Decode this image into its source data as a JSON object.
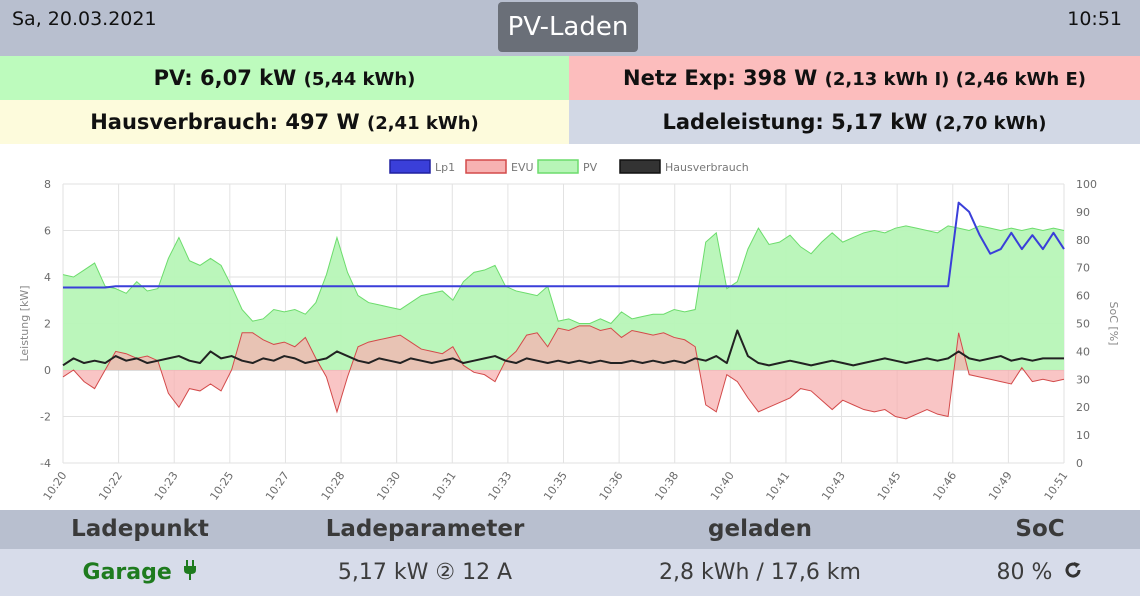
{
  "header": {
    "date": "Sa, 20.03.2021",
    "title": "PV-Laden",
    "time": "10:51"
  },
  "summary": {
    "pv_main": "PV: 6,07 kW",
    "pv_sub": "(5,44 kWh)",
    "netz_main": "Netz Exp: 398 W",
    "netz_sub": "(2,13 kWh I) (2,46 kWh E)",
    "haus_main": "Hausverbrauch: 497 W",
    "haus_sub": "(2,41 kWh)",
    "lade_main": "Ladeleistung: 5,17 kW",
    "lade_sub": "(2,70 kWh)"
  },
  "colors": {
    "header_bg": "#b8bfcf",
    "pv_bg": "#bdfbbd",
    "netz_bg": "#fcbdbd",
    "haus_bg": "#fdfbdc",
    "lade_bg": "#d2d8e5",
    "lp1": "#3a3fd9",
    "evu_fill": "#f7b2b2",
    "evu_line": "#d34a4a",
    "pv_fill": "#b7f5b7",
    "pv_line": "#6cdc6c",
    "haus_line": "#222222"
  },
  "chart_data": {
    "type": "line",
    "xlabel": "",
    "ylabel": "Leistung [kW]",
    "y2label": "SoC [%]",
    "ylim": [
      -4,
      8
    ],
    "y2lim": [
      0,
      100
    ],
    "y_ticks": [
      "-4",
      "-2",
      "0",
      "2",
      "4",
      "6",
      "8"
    ],
    "y2_ticks": [
      "0",
      "10",
      "20",
      "30",
      "40",
      "50",
      "60",
      "70",
      "80",
      "90",
      "100"
    ],
    "x_tick_labels": [
      "10:20",
      "10:22",
      "10:23",
      "10:25",
      "10:27",
      "10:28",
      "10:30",
      "10:31",
      "10:33",
      "10:35",
      "10:36",
      "10:38",
      "10:40",
      "10:41",
      "10:43",
      "10:45",
      "10:46",
      "10:49",
      "10:51"
    ],
    "legend": [
      "Lp1",
      "EVU",
      "PV",
      "Hausverbrauch"
    ],
    "legend_position": "top",
    "grid": true,
    "series": [
      {
        "name": "PV",
        "kind": "area",
        "values": [
          4.1,
          4.0,
          4.3,
          4.6,
          3.6,
          3.5,
          3.3,
          3.8,
          3.4,
          3.5,
          4.8,
          5.7,
          4.7,
          4.5,
          4.8,
          4.5,
          3.6,
          2.6,
          2.1,
          2.2,
          2.6,
          2.5,
          2.6,
          2.4,
          2.9,
          4.1,
          5.7,
          4.2,
          3.2,
          2.9,
          2.8,
          2.7,
          2.6,
          2.9,
          3.2,
          3.3,
          3.4,
          3.0,
          3.8,
          4.2,
          4.3,
          4.5,
          3.6,
          3.4,
          3.3,
          3.2,
          3.6,
          2.1,
          2.2,
          2.0,
          2.0,
          2.2,
          2.0,
          2.5,
          2.2,
          2.3,
          2.4,
          2.4,
          2.6,
          2.5,
          2.6,
          5.5,
          5.9,
          3.5,
          3.8,
          5.2,
          6.1,
          5.4,
          5.5,
          5.8,
          5.3,
          5.0,
          5.5,
          5.9,
          5.5,
          5.7,
          5.9,
          6.0,
          5.9,
          6.1,
          6.2,
          6.1,
          6.0,
          5.9,
          6.2,
          6.1,
          6.0,
          6.2,
          6.1,
          6.0,
          6.1,
          6.0,
          6.1,
          6.0,
          6.1,
          6.0
        ]
      },
      {
        "name": "EVU",
        "kind": "area",
        "values": [
          -0.3,
          0.0,
          -0.5,
          -0.8,
          0.0,
          0.8,
          0.7,
          0.5,
          0.6,
          0.4,
          -1.0,
          -1.6,
          -0.8,
          -0.9,
          -0.6,
          -0.9,
          0.0,
          1.6,
          1.6,
          1.3,
          1.1,
          1.2,
          1.0,
          1.4,
          0.5,
          -0.3,
          -1.8,
          -0.3,
          1.0,
          1.2,
          1.3,
          1.4,
          1.5,
          1.2,
          0.9,
          0.8,
          0.7,
          1.0,
          0.2,
          -0.1,
          -0.2,
          -0.5,
          0.4,
          0.8,
          1.5,
          1.6,
          1.0,
          1.8,
          1.7,
          1.9,
          1.9,
          1.7,
          1.8,
          1.4,
          1.7,
          1.6,
          1.5,
          1.6,
          1.4,
          1.3,
          1.0,
          -1.5,
          -1.8,
          -0.2,
          -0.5,
          -1.2,
          -1.8,
          -1.6,
          -1.4,
          -1.2,
          -0.8,
          -0.9,
          -1.3,
          -1.7,
          -1.3,
          -1.5,
          -1.7,
          -1.8,
          -1.7,
          -2.0,
          -2.1,
          -1.9,
          -1.7,
          -1.9,
          -2.0,
          1.6,
          -0.2,
          -0.3,
          -0.4,
          -0.5,
          -0.6,
          0.1,
          -0.5,
          -0.4,
          -0.5,
          -0.4
        ]
      },
      {
        "name": "Lp1",
        "kind": "line",
        "values": [
          3.55,
          3.55,
          3.55,
          3.55,
          3.55,
          3.6,
          3.6,
          3.6,
          3.6,
          3.6,
          3.6,
          3.6,
          3.6,
          3.6,
          3.6,
          3.6,
          3.6,
          3.6,
          3.6,
          3.6,
          3.6,
          3.6,
          3.6,
          3.6,
          3.6,
          3.6,
          3.6,
          3.6,
          3.6,
          3.6,
          3.6,
          3.6,
          3.6,
          3.6,
          3.6,
          3.6,
          3.6,
          3.6,
          3.6,
          3.6,
          3.6,
          3.6,
          3.6,
          3.6,
          3.6,
          3.6,
          3.6,
          3.6,
          3.6,
          3.6,
          3.6,
          3.6,
          3.6,
          3.6,
          3.6,
          3.6,
          3.6,
          3.6,
          3.6,
          3.6,
          3.6,
          3.6,
          3.6,
          3.6,
          3.6,
          3.6,
          3.6,
          3.6,
          3.6,
          3.6,
          3.6,
          3.6,
          3.6,
          3.6,
          3.6,
          3.6,
          3.6,
          3.6,
          3.6,
          3.6,
          3.6,
          3.6,
          3.6,
          3.6,
          3.6,
          7.2,
          6.8,
          5.8,
          5.0,
          5.2,
          5.9,
          5.2,
          5.8,
          5.2,
          5.9,
          5.2
        ]
      },
      {
        "name": "Hausverbrauch",
        "kind": "line",
        "values": [
          0.2,
          0.5,
          0.3,
          0.4,
          0.3,
          0.6,
          0.4,
          0.5,
          0.3,
          0.4,
          0.5,
          0.6,
          0.4,
          0.3,
          0.8,
          0.5,
          0.6,
          0.4,
          0.3,
          0.5,
          0.4,
          0.6,
          0.5,
          0.3,
          0.4,
          0.5,
          0.8,
          0.6,
          0.4,
          0.3,
          0.5,
          0.4,
          0.3,
          0.5,
          0.4,
          0.3,
          0.4,
          0.5,
          0.3,
          0.4,
          0.5,
          0.6,
          0.4,
          0.3,
          0.5,
          0.4,
          0.3,
          0.4,
          0.3,
          0.4,
          0.3,
          0.4,
          0.3,
          0.3,
          0.4,
          0.3,
          0.4,
          0.3,
          0.4,
          0.3,
          0.5,
          0.4,
          0.6,
          0.3,
          1.7,
          0.6,
          0.3,
          0.2,
          0.3,
          0.4,
          0.3,
          0.2,
          0.3,
          0.4,
          0.3,
          0.2,
          0.3,
          0.4,
          0.5,
          0.4,
          0.3,
          0.4,
          0.5,
          0.4,
          0.5,
          0.8,
          0.5,
          0.4,
          0.5,
          0.6,
          0.4,
          0.5,
          0.4,
          0.5,
          0.5,
          0.5
        ]
      }
    ]
  },
  "table": {
    "headers": [
      "Ladepunkt",
      "Ladeparameter",
      "geladen",
      "SoC"
    ],
    "row": {
      "ladepunkt": "Garage",
      "parameter": "5,17 kW ② 12 A",
      "geladen": "2,8 kWh / 17,6 km",
      "soc": "80 %"
    },
    "icons": {
      "plug": "plug-icon",
      "refresh": "refresh-icon"
    }
  }
}
